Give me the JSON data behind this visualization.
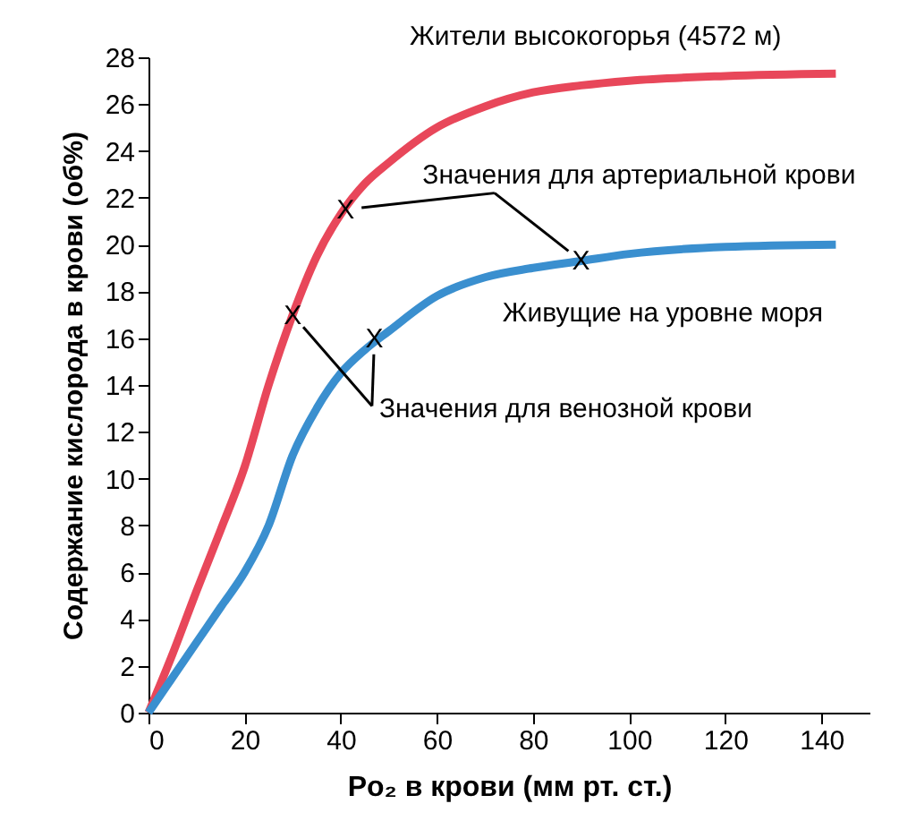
{
  "chart_data": {
    "type": "line",
    "xlabel": "Po₂ в крови (мм рт. ст.)",
    "ylabel": "Содержание кислорода в крови (об%)",
    "x": [
      0,
      5,
      10,
      15,
      20,
      25,
      30,
      35,
      40,
      45,
      50,
      60,
      70,
      80,
      90,
      100,
      120,
      143
    ],
    "series": [
      {
        "name": "Жители высокогорья (4572 м)",
        "color": "#e8475a",
        "values": [
          0,
          2.5,
          5.2,
          7.8,
          10.5,
          14,
          17,
          19.5,
          21.3,
          22.6,
          23.5,
          25,
          25.9,
          26.5,
          26.8,
          27,
          27.2,
          27.3
        ]
      },
      {
        "name": "Живущие на уровне моря",
        "color": "#3a8fcf",
        "values": [
          0,
          1.5,
          3,
          4.5,
          6,
          8,
          11,
          13,
          14.5,
          15.5,
          16.3,
          17.8,
          18.6,
          19,
          19.3,
          19.6,
          19.9,
          20
        ]
      }
    ],
    "xlim": [
      0,
      150
    ],
    "xticks": [
      0,
      20,
      40,
      60,
      80,
      100,
      120,
      140
    ],
    "ylim": [
      0,
      28
    ],
    "yticks": [
      0,
      2,
      4,
      6,
      8,
      10,
      12,
      14,
      16,
      18,
      20,
      22,
      24,
      26,
      28
    ],
    "grid": false,
    "legend": false,
    "marker": "none",
    "line_style": "solid",
    "annotations": [
      "Значения для артериальной крови",
      {
        "text": "X",
        "x": 41,
        "y": 21.5
      },
      {
        "text": "X",
        "x": 90,
        "y": 19.3
      },
      "Значения для венозной крови",
      {
        "text": "X",
        "x": 30,
        "y": 17
      },
      {
        "text": "X",
        "x": 47,
        "y": 16
      }
    ]
  }
}
